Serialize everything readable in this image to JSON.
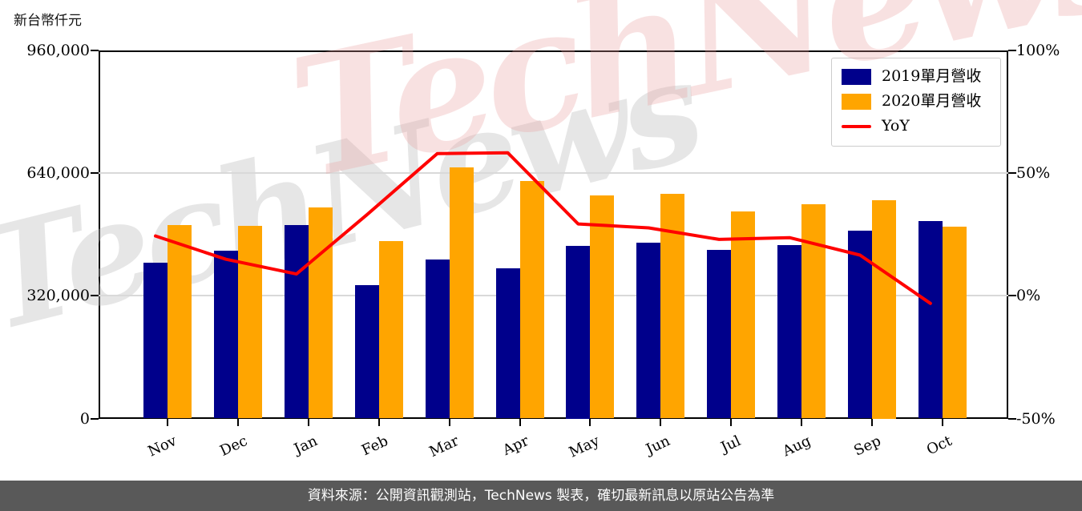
{
  "title": "新台幣仟元",
  "watermark": {
    "text": "TechNews"
  },
  "footer": "資料來源：公開資訊觀測站，TechNews 製表，確切最新訊息以原站公告為準",
  "legend": [
    {
      "label": "2019單月營收",
      "color": "#00008B",
      "type": "bar"
    },
    {
      "label": "2020單月營收",
      "color": "#FFA500",
      "type": "bar"
    },
    {
      "label": "YoY",
      "color": "#FF0000",
      "type": "line"
    }
  ],
  "colors": {
    "bar_2019": "#00008B",
    "bar_2020": "#FFA500",
    "yoy_line": "#FF0000",
    "gridline": "#d9d9d9",
    "footer_bg": "#595959",
    "watermark_gray": "#bfbfbf",
    "watermark_pink": "#eb9f9f"
  },
  "chart_data": {
    "type": "bar",
    "title": "新台幣仟元",
    "categories": [
      "Nov",
      "Dec",
      "Jan",
      "Feb",
      "Mar",
      "Apr",
      "May",
      "Jun",
      "Jul",
      "Aug",
      "Sep",
      "Oct"
    ],
    "series": [
      {
        "name": "2019單月營收",
        "type": "bar",
        "axis": "left",
        "color": "#00008B",
        "values": [
          406000,
          437000,
          505000,
          348000,
          414000,
          391000,
          450000,
          458000,
          440000,
          452000,
          489000,
          516000
        ]
      },
      {
        "name": "2020單月營收",
        "type": "bar",
        "axis": "left",
        "color": "#FFA500",
        "values": [
          505000,
          502000,
          550000,
          463000,
          654000,
          619000,
          582000,
          585000,
          541000,
          559000,
          570000,
          500000
        ]
      },
      {
        "name": "YoY",
        "type": "line",
        "axis": "right",
        "color": "#FF0000",
        "values": [
          24.4,
          14.9,
          8.9,
          33.0,
          58.0,
          58.3,
          29.3,
          27.7,
          23.0,
          23.7,
          16.6,
          -3.1
        ]
      }
    ],
    "left_axis": {
      "unit": "新台幣仟元",
      "range": [
        0,
        960000
      ],
      "tick_values": [
        0,
        320000,
        640000,
        960000
      ],
      "tick_labels": [
        "0",
        "320,000",
        "640,000",
        "960,000"
      ]
    },
    "right_axis": {
      "unit": "%",
      "range": [
        -50,
        100
      ],
      "tick_values": [
        -50,
        0,
        50,
        100
      ],
      "tick_labels": [
        "-50%",
        "0%",
        "50%",
        "100%"
      ]
    },
    "grid": "horizontal",
    "legend_position": "upper right"
  }
}
